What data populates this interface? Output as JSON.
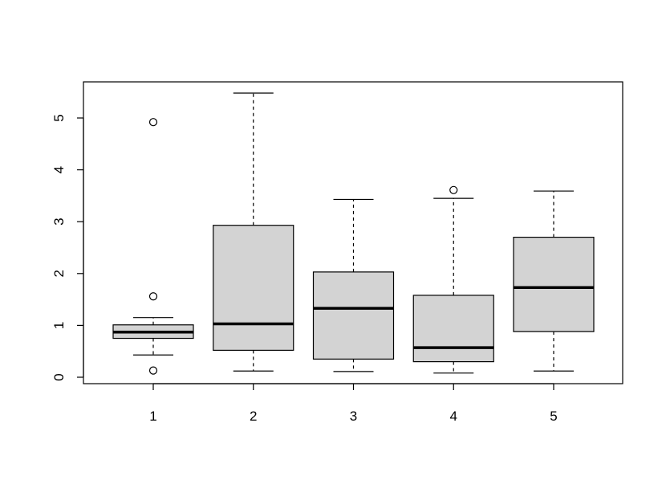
{
  "chart_data": {
    "type": "boxplot",
    "categories": [
      "1",
      "2",
      "3",
      "4",
      "5"
    ],
    "boxes": [
      {
        "whisker_low": 0.43,
        "q1": 0.75,
        "median": 0.87,
        "q3": 1.01,
        "whisker_high": 1.15,
        "outliers": [
          0.13,
          1.56,
          4.92
        ]
      },
      {
        "whisker_low": 0.12,
        "q1": 0.52,
        "median": 1.03,
        "q3": 2.93,
        "whisker_high": 5.48,
        "outliers": []
      },
      {
        "whisker_low": 0.11,
        "q1": 0.35,
        "median": 1.33,
        "q3": 2.03,
        "whisker_high": 3.43,
        "outliers": []
      },
      {
        "whisker_low": 0.08,
        "q1": 0.3,
        "median": 0.57,
        "q3": 1.58,
        "whisker_high": 3.45,
        "outliers": [
          3.61
        ]
      },
      {
        "whisker_low": 0.12,
        "q1": 0.88,
        "median": 1.73,
        "q3": 2.7,
        "whisker_high": 3.59,
        "outliers": []
      }
    ],
    "y_ticks": [
      0,
      1,
      2,
      3,
      4,
      5
    ],
    "ylim": [
      -0.13,
      5.7
    ],
    "box_fill": "#d3d3d3",
    "title": "",
    "xlabel": "",
    "ylabel": "",
    "grid": false
  }
}
